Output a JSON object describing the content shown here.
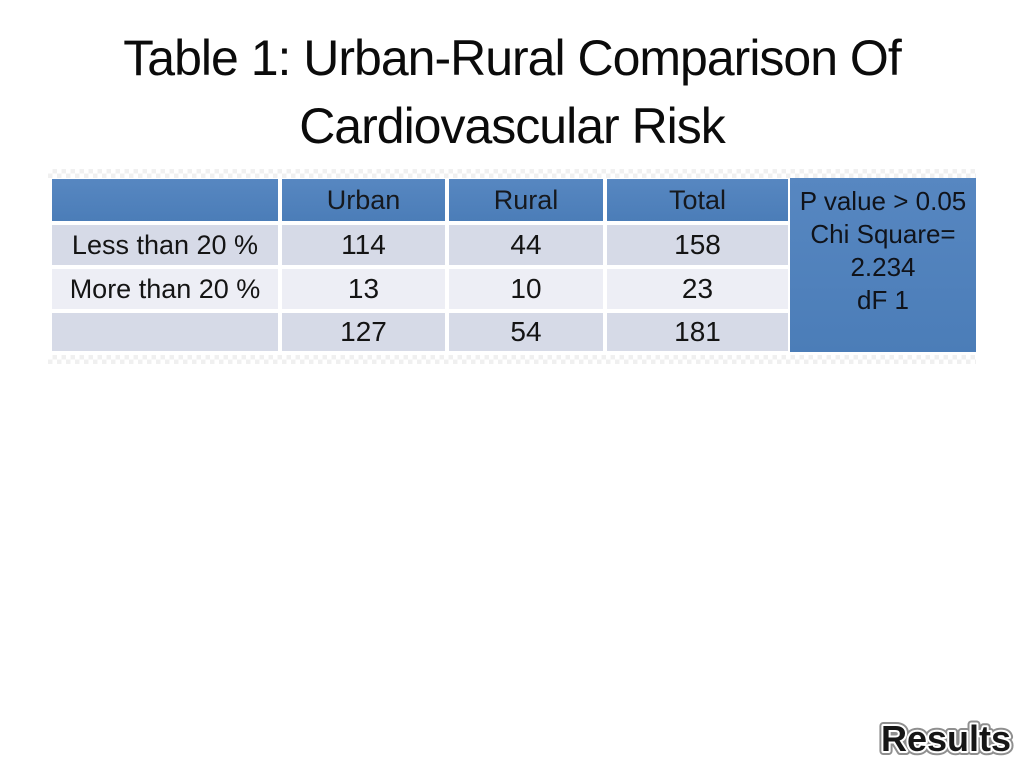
{
  "slide": {
    "title_lines": [
      "Table 1: Urban-Rural Comparison Of",
      "Cardiovascular Risk"
    ],
    "watermark_label": "Results"
  },
  "table": {
    "header": {
      "label": "",
      "urban": "Urban",
      "rural": "Rural",
      "total": "Total"
    },
    "rows": [
      {
        "label": "Less than 20 %",
        "urban": "114",
        "rural": "44",
        "total": "158"
      },
      {
        "label": "More than 20 %",
        "urban": "13",
        "rural": "10",
        "total": "23"
      },
      {
        "label": "",
        "urban": "127",
        "rural": "54",
        "total": "181"
      }
    ]
  },
  "stats_panel": {
    "lines": [
      "P value > 0.05",
      "Chi Square=",
      "2.234",
      "dF 1"
    ]
  },
  "colors": {
    "header_blue": "#4f81bd",
    "panel_blue": "#4f81bd",
    "row_band_dark": "#d6dae7",
    "row_band_light": "#edeef5",
    "title_text": "#0b0b0b"
  },
  "chart_data": {
    "type": "table",
    "title": "Table 1: Urban-Rural Comparison Of Cardiovascular Risk",
    "columns": [
      "",
      "Urban",
      "Rural",
      "Total"
    ],
    "rows": [
      [
        "Less than 20 %",
        114,
        44,
        158
      ],
      [
        "More than 20 %",
        13,
        10,
        23
      ],
      [
        "",
        127,
        54,
        181
      ]
    ],
    "annotations": [
      "P value > 0.05",
      "Chi Square= 2.234",
      "dF 1"
    ]
  }
}
